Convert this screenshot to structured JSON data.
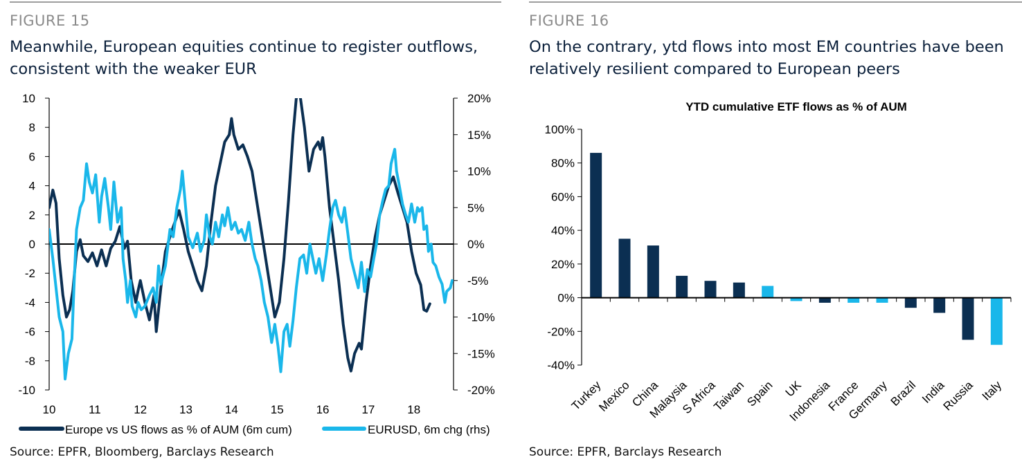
{
  "figures": [
    {
      "label": "FIGURE 15",
      "title_line1": "Meanwhile, European equities continue to register outflows,",
      "title_line2": "consistent with the weaker EUR",
      "source": "Source: EPFR, Bloomberg, Barclays Research"
    },
    {
      "label": "FIGURE 16",
      "title_line1": "On the contrary, ytd flows into most EM countries have been",
      "title_line2": "relatively resilient compared to European peers",
      "source": "Source: EPFR, Barclays Research"
    }
  ],
  "colors": {
    "dark_navy": "#0b2f52",
    "light_blue": "#1ab7ea",
    "figure_label": "#8a8a8a",
    "title": "#0a1f3a"
  },
  "chart_data": [
    {
      "type": "line",
      "x_ticks": [
        "10",
        "11",
        "12",
        "13",
        "14",
        "15",
        "16",
        "17",
        "18"
      ],
      "y_left_ticks": [
        "10",
        "8",
        "6",
        "4",
        "2",
        "0",
        "-2",
        "-4",
        "-6",
        "-8",
        "-10"
      ],
      "y_right_ticks": [
        "20%",
        "15%",
        "10%",
        "5%",
        "0%",
        "-5%",
        "-10%",
        "-15%",
        "-20%"
      ],
      "ylim_left": [
        -10,
        10
      ],
      "ylim_right": [
        -20,
        20
      ],
      "xlim": [
        10,
        18.85
      ],
      "legend_placement": "bottom",
      "series": [
        {
          "name": "Europe vs US flows as % of AUM (6m cum)",
          "axis": "left",
          "color": "#0b2f52",
          "points": [
            [
              10.0,
              2.5
            ],
            [
              10.08,
              3.7
            ],
            [
              10.15,
              2.8
            ],
            [
              10.22,
              -1.0
            ],
            [
              10.3,
              -3.5
            ],
            [
              10.38,
              -5.0
            ],
            [
              10.45,
              -4.5
            ],
            [
              10.52,
              -3.2
            ],
            [
              10.6,
              -0.5
            ],
            [
              10.68,
              0.3
            ],
            [
              10.75,
              -0.8
            ],
            [
              10.85,
              -1.2
            ],
            [
              10.95,
              -0.6
            ],
            [
              11.05,
              -1.5
            ],
            [
              11.15,
              -0.4
            ],
            [
              11.25,
              -1.5
            ],
            [
              11.35,
              -0.3
            ],
            [
              11.45,
              0.2
            ],
            [
              11.55,
              1.2
            ],
            [
              11.65,
              -0.3
            ],
            [
              11.72,
              0.2
            ],
            [
              11.8,
              -2.5
            ],
            [
              11.9,
              -4.0
            ],
            [
              11.95,
              -3.2
            ],
            [
              12.0,
              -2.5
            ],
            [
              12.1,
              -4.0
            ],
            [
              12.2,
              -5.2
            ],
            [
              12.3,
              -3.5
            ],
            [
              12.35,
              -6.0
            ],
            [
              12.45,
              -3.0
            ],
            [
              12.55,
              -0.5
            ],
            [
              12.7,
              1.0
            ],
            [
              12.85,
              2.3
            ],
            [
              12.95,
              1.0
            ],
            [
              13.05,
              -0.5
            ],
            [
              13.15,
              -1.5
            ],
            [
              13.25,
              -2.5
            ],
            [
              13.35,
              -3.2
            ],
            [
              13.45,
              -1.5
            ],
            [
              13.55,
              1.5
            ],
            [
              13.65,
              4.0
            ],
            [
              13.75,
              5.5
            ],
            [
              13.85,
              7.0
            ],
            [
              13.95,
              7.5
            ],
            [
              14.0,
              8.6
            ],
            [
              14.05,
              7.5
            ],
            [
              14.15,
              6.5
            ],
            [
              14.25,
              6.8
            ],
            [
              14.35,
              6.0
            ],
            [
              14.45,
              5.0
            ],
            [
              14.55,
              3.0
            ],
            [
              14.65,
              1.0
            ],
            [
              14.75,
              -1.0
            ],
            [
              14.85,
              -3.0
            ],
            [
              14.95,
              -5.0
            ],
            [
              15.05,
              -4.0
            ],
            [
              15.15,
              -1.0
            ],
            [
              15.25,
              3.0
            ],
            [
              15.35,
              7.5
            ],
            [
              15.42,
              10.0
            ],
            [
              15.5,
              10.3
            ],
            [
              15.6,
              8.0
            ],
            [
              15.7,
              5.0
            ],
            [
              15.8,
              6.5
            ],
            [
              15.9,
              7.0
            ],
            [
              15.95,
              6.5
            ],
            [
              16.0,
              7.3
            ],
            [
              16.05,
              6.0
            ],
            [
              16.15,
              2.5
            ],
            [
              16.25,
              0.0
            ],
            [
              16.35,
              -2.5
            ],
            [
              16.45,
              -5.5
            ],
            [
              16.55,
              -7.8
            ],
            [
              16.62,
              -8.7
            ],
            [
              16.7,
              -7.5
            ],
            [
              16.8,
              -6.8
            ],
            [
              16.85,
              -7.2
            ],
            [
              16.95,
              -4.0
            ],
            [
              17.05,
              -1.5
            ],
            [
              17.15,
              0.5
            ],
            [
              17.25,
              2.0
            ],
            [
              17.35,
              3.0
            ],
            [
              17.45,
              4.0
            ],
            [
              17.55,
              4.6
            ],
            [
              17.65,
              3.5
            ],
            [
              17.75,
              2.5
            ],
            [
              17.85,
              1.5
            ],
            [
              17.95,
              -0.5
            ],
            [
              18.05,
              -2.0
            ],
            [
              18.15,
              -2.8
            ],
            [
              18.22,
              -4.5
            ],
            [
              18.28,
              -4.6
            ],
            [
              18.35,
              -4.1
            ]
          ]
        },
        {
          "name": "EURUSD, 6m chg (rhs)",
          "axis": "right",
          "color": "#1ab7ea",
          "points": [
            [
              10.0,
              2.0
            ],
            [
              10.08,
              -2.0
            ],
            [
              10.15,
              -6.0
            ],
            [
              10.22,
              -10.0
            ],
            [
              10.3,
              -12.0
            ],
            [
              10.35,
              -18.5
            ],
            [
              10.42,
              -15.0
            ],
            [
              10.5,
              -13.0
            ],
            [
              10.55,
              -5.0
            ],
            [
              10.6,
              2.0
            ],
            [
              10.68,
              5.0
            ],
            [
              10.75,
              6.0
            ],
            [
              10.82,
              11.0
            ],
            [
              10.88,
              8.5
            ],
            [
              10.95,
              7.0
            ],
            [
              11.02,
              9.5
            ],
            [
              11.1,
              3.0
            ],
            [
              11.15,
              6.5
            ],
            [
              11.22,
              9.0
            ],
            [
              11.3,
              5.0
            ],
            [
              11.35,
              2.0
            ],
            [
              11.42,
              8.5
            ],
            [
              11.5,
              3.0
            ],
            [
              11.58,
              5.0
            ],
            [
              11.62,
              -2.0
            ],
            [
              11.68,
              -5.0
            ],
            [
              11.72,
              -8.0
            ],
            [
              11.78,
              -5.0
            ],
            [
              11.82,
              -8.5
            ],
            [
              11.9,
              -10.0
            ],
            [
              11.95,
              -8.0
            ],
            [
              12.02,
              -9.0
            ],
            [
              12.1,
              -8.5
            ],
            [
              12.2,
              -7.0
            ],
            [
              12.28,
              -6.0
            ],
            [
              12.35,
              -8.0
            ],
            [
              12.4,
              -3.0
            ],
            [
              12.45,
              -5.5
            ],
            [
              12.55,
              -3.0
            ],
            [
              12.65,
              2.0
            ],
            [
              12.72,
              1.0
            ],
            [
              12.8,
              5.0
            ],
            [
              12.88,
              7.5
            ],
            [
              12.92,
              10.0
            ],
            [
              12.98,
              6.0
            ],
            [
              13.05,
              1.0
            ],
            [
              13.15,
              -0.5
            ],
            [
              13.25,
              1.5
            ],
            [
              13.32,
              -1.0
            ],
            [
              13.4,
              0.5
            ],
            [
              13.45,
              4.0
            ],
            [
              13.52,
              1.0
            ],
            [
              13.58,
              0.0
            ],
            [
              13.65,
              3.0
            ],
            [
              13.72,
              1.0
            ],
            [
              13.8,
              4.0
            ],
            [
              13.85,
              2.5
            ],
            [
              13.92,
              5.0
            ],
            [
              14.0,
              2.0
            ],
            [
              14.08,
              3.0
            ],
            [
              14.15,
              1.5
            ],
            [
              14.22,
              2.0
            ],
            [
              14.3,
              0.5
            ],
            [
              14.38,
              3.0
            ],
            [
              14.45,
              0.0
            ],
            [
              14.52,
              -2.0
            ],
            [
              14.58,
              -3.0
            ],
            [
              14.65,
              -5.0
            ],
            [
              14.72,
              -8.0
            ],
            [
              14.8,
              -10.0
            ],
            [
              14.88,
              -13.5
            ],
            [
              14.95,
              -11.0
            ],
            [
              15.02,
              -14.0
            ],
            [
              15.08,
              -17.5
            ],
            [
              15.15,
              -12.0
            ],
            [
              15.22,
              -11.0
            ],
            [
              15.28,
              -14.0
            ],
            [
              15.35,
              -10.5
            ],
            [
              15.42,
              -6.0
            ],
            [
              15.5,
              -2.0
            ],
            [
              15.58,
              -1.5
            ],
            [
              15.65,
              -4.0
            ],
            [
              15.72,
              0.0
            ],
            [
              15.8,
              -2.5
            ],
            [
              15.85,
              -4.0
            ],
            [
              15.92,
              -2.0
            ],
            [
              16.0,
              -5.0
            ],
            [
              16.08,
              -1.5
            ],
            [
              16.15,
              2.0
            ],
            [
              16.22,
              5.0
            ],
            [
              16.28,
              6.0
            ],
            [
              16.35,
              4.0
            ],
            [
              16.42,
              3.0
            ],
            [
              16.48,
              5.0
            ],
            [
              16.55,
              1.5
            ],
            [
              16.62,
              -2.0
            ],
            [
              16.7,
              -4.0
            ],
            [
              16.78,
              -6.0
            ],
            [
              16.85,
              -2.5
            ],
            [
              16.92,
              -6.5
            ],
            [
              16.98,
              -3.5
            ],
            [
              17.05,
              -4.5
            ],
            [
              17.12,
              -2.0
            ],
            [
              17.18,
              0.0
            ],
            [
              17.25,
              4.0
            ],
            [
              17.32,
              6.0
            ],
            [
              17.38,
              7.5
            ],
            [
              17.45,
              8.0
            ],
            [
              17.5,
              11.0
            ],
            [
              17.58,
              13.0
            ],
            [
              17.62,
              10.0
            ],
            [
              17.68,
              8.0
            ],
            [
              17.75,
              5.5
            ],
            [
              17.82,
              4.0
            ],
            [
              17.88,
              3.0
            ],
            [
              17.95,
              5.5
            ],
            [
              18.02,
              3.0
            ],
            [
              18.08,
              5.0
            ],
            [
              18.12,
              4.5
            ],
            [
              18.18,
              5.0
            ],
            [
              18.22,
              2.0
            ],
            [
              18.28,
              2.5
            ],
            [
              18.32,
              -1.0
            ],
            [
              18.38,
              0.0
            ],
            [
              18.42,
              -2.5
            ],
            [
              18.48,
              -3.0
            ],
            [
              18.55,
              -4.5
            ],
            [
              18.62,
              -5.5
            ],
            [
              18.68,
              -8.0
            ],
            [
              18.72,
              -6.5
            ],
            [
              18.8,
              -6.0
            ],
            [
              18.84,
              -5.0
            ]
          ]
        }
      ]
    },
    {
      "type": "bar",
      "title": "YTD cumulative ETF flows as % of AUM",
      "categories": [
        "Turkey",
        "Mexico",
        "China",
        "Malaysia",
        "S Africa",
        "Taiwan",
        "Spain",
        "UK",
        "Indonesia",
        "France",
        "Germany",
        "Brazil",
        "India",
        "Russia",
        "Italy"
      ],
      "values": [
        86,
        35,
        31,
        13,
        10,
        9,
        7,
        -2,
        -3,
        -3,
        -3,
        -6,
        -9,
        -25,
        -28
      ],
      "bar_colors": [
        "#0b2f52",
        "#0b2f52",
        "#0b2f52",
        "#0b2f52",
        "#0b2f52",
        "#0b2f52",
        "#1ab7ea",
        "#1ab7ea",
        "#0b2f52",
        "#1ab7ea",
        "#1ab7ea",
        "#0b2f52",
        "#0b2f52",
        "#0b2f52",
        "#1ab7ea"
      ],
      "y_ticks": [
        "100%",
        "80%",
        "60%",
        "40%",
        "20%",
        "0%",
        "-20%",
        "-40%"
      ],
      "ylim": [
        -40,
        100
      ]
    }
  ]
}
